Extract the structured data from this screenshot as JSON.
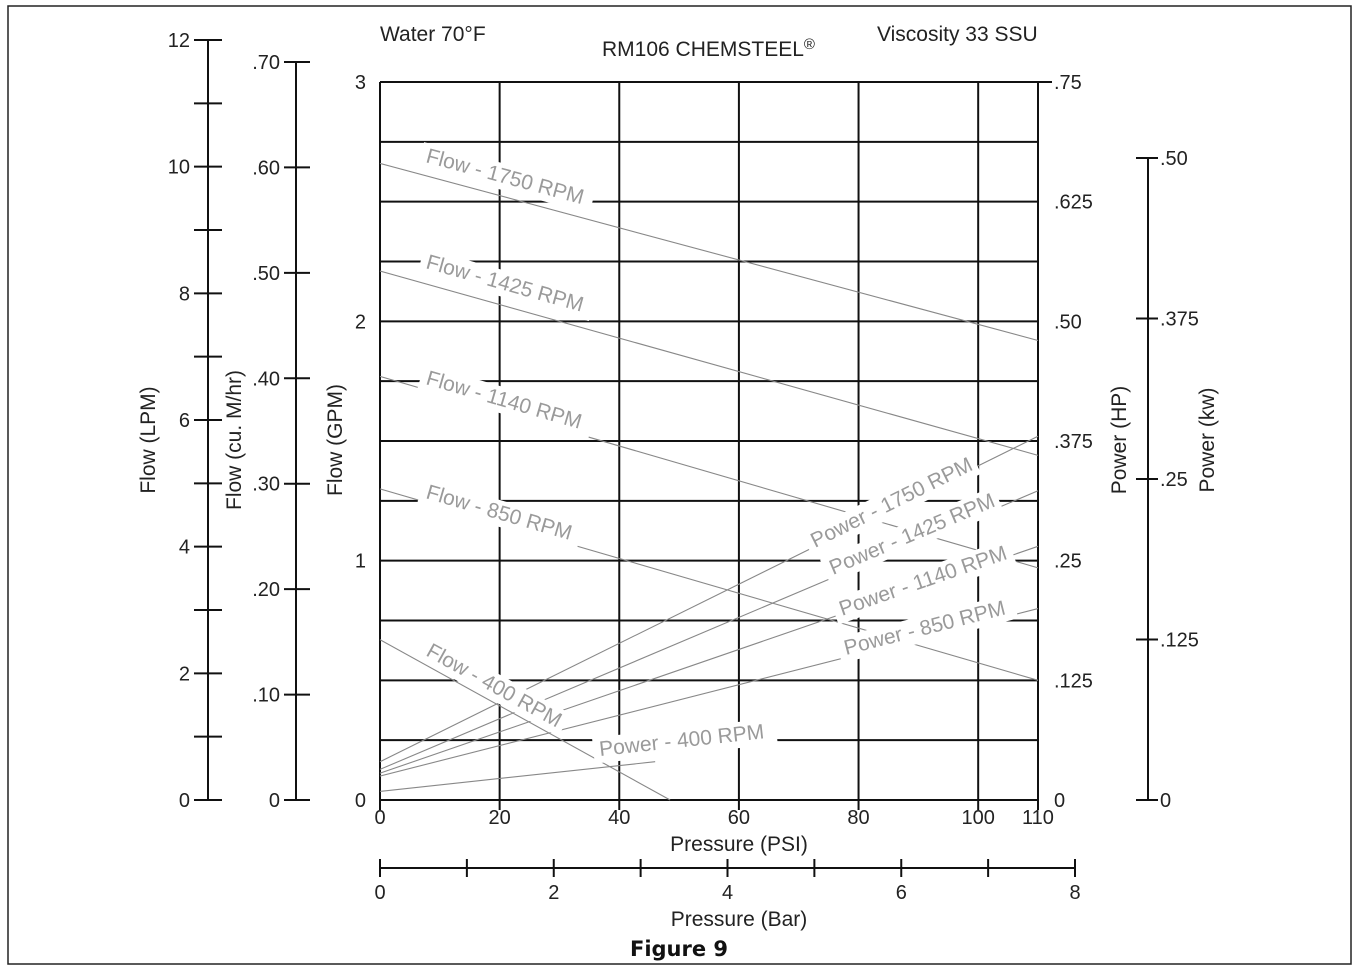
{
  "chart_data": {
    "type": "line",
    "conditions": {
      "fluid": "Water 70°F",
      "viscosity": "Viscosity 33 SSU"
    },
    "title": "RM106 CHEMSTEEL",
    "title_mark": "®",
    "caption": "Figure 9",
    "x_axis": {
      "label": "Pressure (PSI)",
      "range": [
        0,
        110
      ],
      "ticks": [
        0,
        20,
        40,
        60,
        80,
        100,
        110
      ]
    },
    "x2_axis": {
      "label": "Pressure (Bar)",
      "range": [
        0,
        8
      ],
      "major_ticks": [
        0,
        2,
        4,
        6,
        8
      ],
      "minor_ticks": [
        1,
        3,
        5,
        7
      ]
    },
    "y_left_primary": {
      "label": "Flow (GPM)",
      "range": [
        0,
        3
      ],
      "ticks": [
        "0",
        "1",
        "2",
        "3"
      ]
    },
    "y_left_lpm": {
      "label": "Flow (LPM)",
      "range": [
        0,
        12
      ],
      "labeled_ticks": [
        "0",
        "2",
        "4",
        "6",
        "8",
        "10",
        "12"
      ]
    },
    "y_left_m3h": {
      "label": "Flow (cu. M/hr)",
      "range": [
        0,
        0.7
      ],
      "labeled_ticks": [
        "0",
        ".10",
        ".20",
        ".30",
        ".40",
        ".50",
        ".60",
        ".70"
      ]
    },
    "y_right_hp": {
      "label": "Power (HP)",
      "range": [
        0,
        0.75
      ],
      "ticks": [
        "0",
        ".125",
        ".25",
        ".375",
        ".50",
        ".625",
        ".75"
      ]
    },
    "y_right_kw": {
      "label": "Power (kw)",
      "range": [
        0,
        0.5
      ],
      "ticks": [
        "0",
        ".125",
        ".25",
        ".375",
        ".50"
      ]
    },
    "grid": true,
    "flow_series": [
      {
        "name": "Flow - 1750 RPM",
        "x": [
          0,
          110
        ],
        "gpm": [
          2.66,
          1.92
        ]
      },
      {
        "name": "Flow - 1425 RPM",
        "x": [
          0,
          110
        ],
        "gpm": [
          2.21,
          1.44
        ]
      },
      {
        "name": "Flow - 1140 RPM",
        "x": [
          0,
          110
        ],
        "gpm": [
          1.77,
          0.97
        ]
      },
      {
        "name": "Flow - 850 RPM",
        "x": [
          0,
          110
        ],
        "gpm": [
          1.3,
          0.5
        ]
      },
      {
        "name": "Flow - 400 RPM",
        "x": [
          0,
          48.5
        ],
        "gpm": [
          0.67,
          0
        ]
      }
    ],
    "power_series": [
      {
        "name": "Power - 1750 RPM",
        "x": [
          0,
          110
        ],
        "hp": [
          0.04,
          0.38
        ]
      },
      {
        "name": "Power - 1425 RPM",
        "x": [
          0,
          110
        ],
        "hp": [
          0.032,
          0.323
        ]
      },
      {
        "name": "Power - 1140 RPM",
        "x": [
          0,
          110
        ],
        "hp": [
          0.028,
          0.265
        ]
      },
      {
        "name": "Power - 850 RPM",
        "x": [
          0,
          110
        ],
        "hp": [
          0.025,
          0.2
        ]
      },
      {
        "name": "Power - 400 RPM",
        "x": [
          0,
          46
        ],
        "hp": [
          0.009,
          0.04
        ]
      }
    ]
  }
}
